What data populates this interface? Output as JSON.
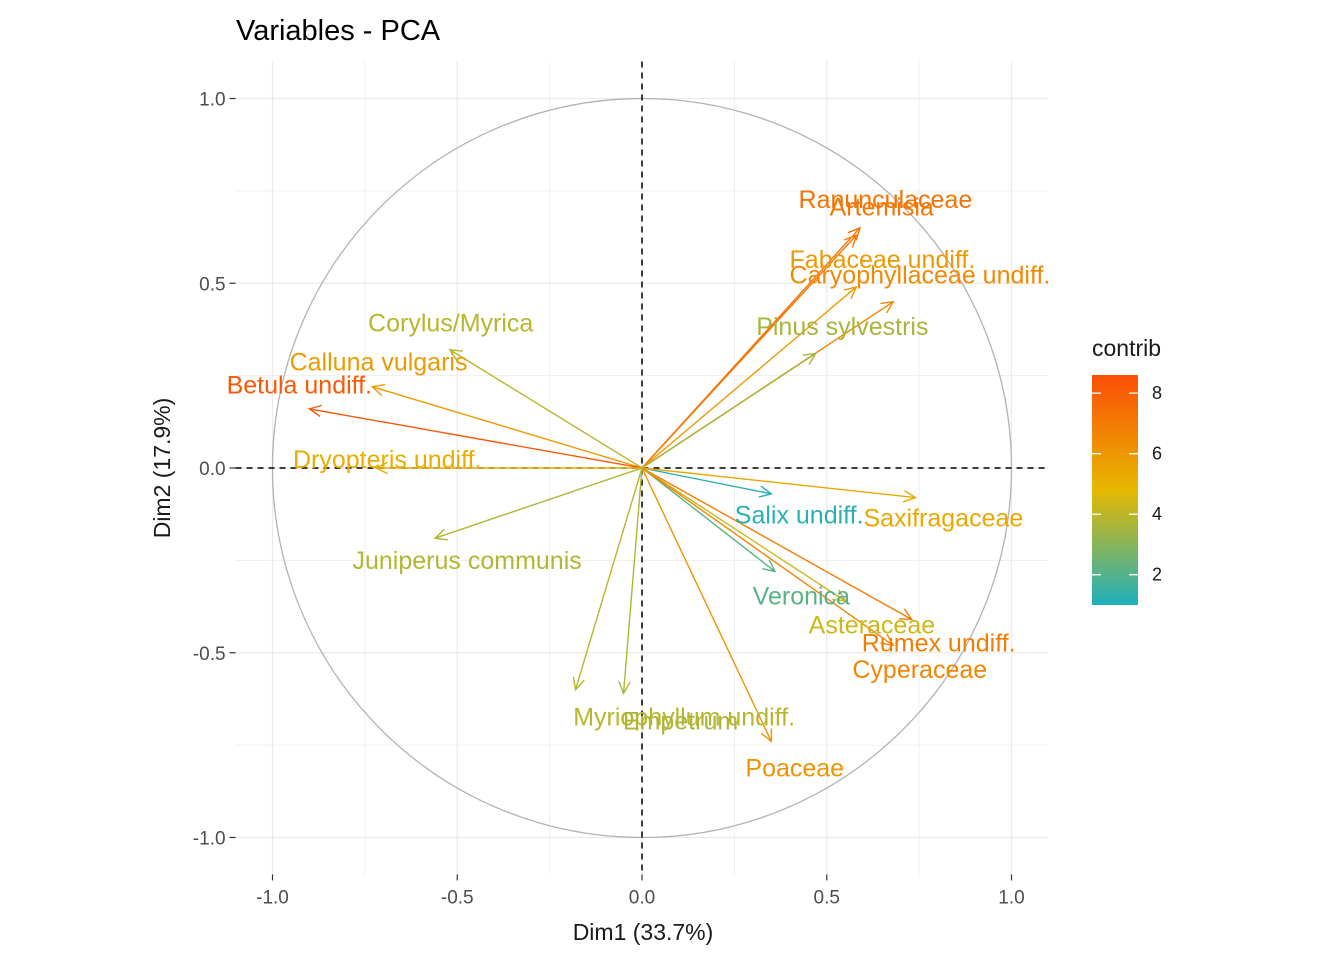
{
  "chart_data": {
    "type": "scatter",
    "title": "Variables - PCA",
    "xlabel": "Dim1 (33.7%)",
    "ylabel": "Dim2 (17.9%)",
    "xlim": [
      -1.1,
      1.1
    ],
    "ylim": [
      -1.1,
      1.1
    ],
    "x_ticks": [
      "-1.0",
      "-0.5",
      "0.0",
      "0.5",
      "1.0"
    ],
    "y_ticks": [
      "1.0",
      "0.5",
      "0.0",
      "-0.5",
      "-1.0"
    ],
    "grid": true,
    "legend": {
      "title": "contrib",
      "placement": "right",
      "ticks": [
        "8",
        "6",
        "4",
        "2"
      ],
      "tick_values": [
        8,
        6,
        4,
        2
      ],
      "range": [
        1,
        8.6
      ]
    },
    "colors": {
      "low": "#1eb0bd",
      "mid": "#e7b800",
      "high": "#fc4e07",
      "circle": "#b3b3b3"
    },
    "variables": [
      {
        "name": "Ranunculaceae",
        "x": 0.59,
        "y": 0.65,
        "contrib": 7.3
      },
      {
        "name": "Artemisia",
        "x": 0.58,
        "y": 0.63,
        "contrib": 7.1
      },
      {
        "name": "Fabaceae undiff.",
        "x": 0.58,
        "y": 0.49,
        "contrib": 5.9
      },
      {
        "name": "Caryophyllaceae undiff.",
        "x": 0.68,
        "y": 0.45,
        "contrib": 6.5
      },
      {
        "name": "Pinus sylvestris",
        "x": 0.47,
        "y": 0.31,
        "contrib": 3.6
      },
      {
        "name": "Corylus/Myrica",
        "x": -0.52,
        "y": 0.32,
        "contrib": 3.9
      },
      {
        "name": "Calluna vulgaris",
        "x": -0.73,
        "y": 0.22,
        "contrib": 5.9
      },
      {
        "name": "Betula undiff.",
        "x": -0.9,
        "y": 0.16,
        "contrib": 8.2
      },
      {
        "name": "Dryopteris undiff.",
        "x": -0.72,
        "y": 0.0,
        "contrib": 5.2
      },
      {
        "name": "Juniperus communis",
        "x": -0.56,
        "y": -0.19,
        "contrib": 3.8
      },
      {
        "name": "Salix undiff.",
        "x": 0.35,
        "y": -0.07,
        "contrib": 1.2
      },
      {
        "name": "Saxifragaceae",
        "x": 0.74,
        "y": -0.08,
        "contrib": 5.4
      },
      {
        "name": "Veronica",
        "x": 0.36,
        "y": -0.28,
        "contrib": 2.1
      },
      {
        "name": "Rumex undiff.",
        "x": 0.73,
        "y": -0.41,
        "contrib": 6.9
      },
      {
        "name": "Asteraceae",
        "x": 0.55,
        "y": -0.36,
        "contrib": 4.3
      },
      {
        "name": "Cyperaceae",
        "x": 0.68,
        "y": -0.48,
        "contrib": 6.6
      },
      {
        "name": "Poaceae",
        "x": 0.35,
        "y": -0.74,
        "contrib": 6.1
      },
      {
        "name": "Myriophyllum undiff.",
        "x": -0.18,
        "y": -0.6,
        "contrib": 3.9
      },
      {
        "name": "Empetrum",
        "x": -0.05,
        "y": -0.61,
        "contrib": 3.7
      }
    ]
  }
}
